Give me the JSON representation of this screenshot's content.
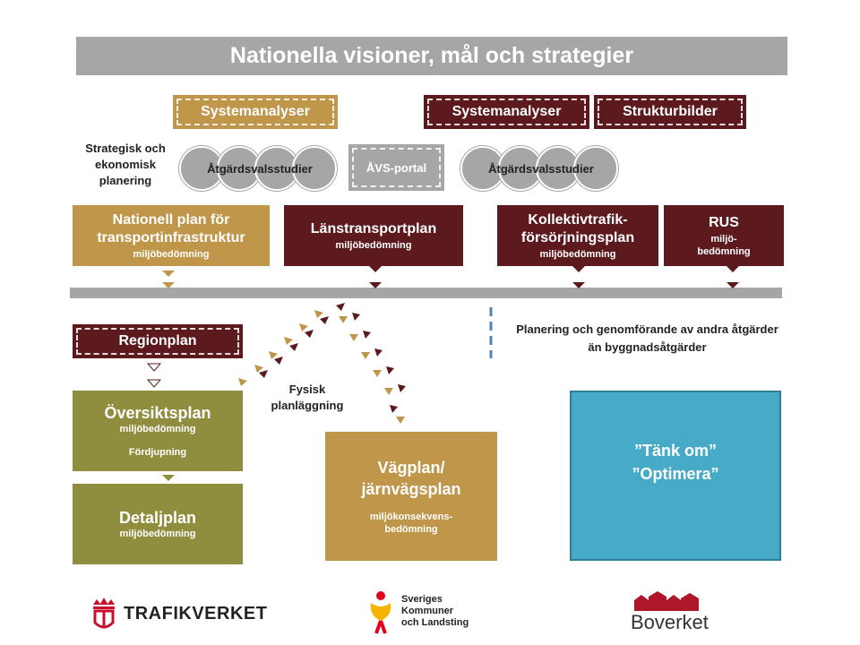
{
  "title": "Nationella visioner, mål och strategier",
  "top_row": {
    "systemanalyser_left": "Systemanalyser",
    "systemanalyser_right": "Systemanalyser",
    "strukturbilder": "Strukturbilder"
  },
  "strategic_label": "Strategisk och ekonomisk planering",
  "atgard_left": "Åtgärdsvalsstudier",
  "avs_portal": "ÅVS-portal",
  "atgard_right": "Åtgärdsvalsstudier",
  "plans": {
    "nationell": {
      "main": "Nationell plan för transportinfrastruktur",
      "sub": "miljöbedömning"
    },
    "lanstransport": {
      "main": "Länstransportplan",
      "sub": "miljöbedömning"
    },
    "kollektiv": {
      "main": "Kollektivtrafik-försörjningsplan",
      "sub": "miljöbedömning"
    },
    "rus": {
      "main": "RUS",
      "sub": "miljö-bedömning"
    }
  },
  "regionplan": "Regionplan",
  "oversiktsplan": {
    "main": "Översiktsplan",
    "sub": "miljöbedömning",
    "extra": "Fördjupning"
  },
  "detaljplan": {
    "main": "Detaljplan",
    "sub": "miljöbedömning"
  },
  "fysisk": "Fysisk planläggning",
  "vagplan": {
    "main": "Vägplan/ järnvägsplan",
    "sub": "miljökonsekvens-bedömning"
  },
  "planering_text": "Planering och genomförande av andra åtgärder än byggnadsåtgärder",
  "tank_om": "”Tänk om”",
  "optimera": "”Optimera”",
  "logos": {
    "trafikverket": "TRAFIKVERKET",
    "skl_line1": "Sveriges",
    "skl_line2": "Kommuner",
    "skl_line3": "och Landsting",
    "boverket": "Boverket"
  },
  "colors": {
    "gold": "#c0964a",
    "maroon": "#5c1a1e",
    "olive": "#8f8d3e",
    "teal": "#47aac6",
    "gray": "#a6a6a6",
    "dash_blue": "#4f81bd"
  }
}
